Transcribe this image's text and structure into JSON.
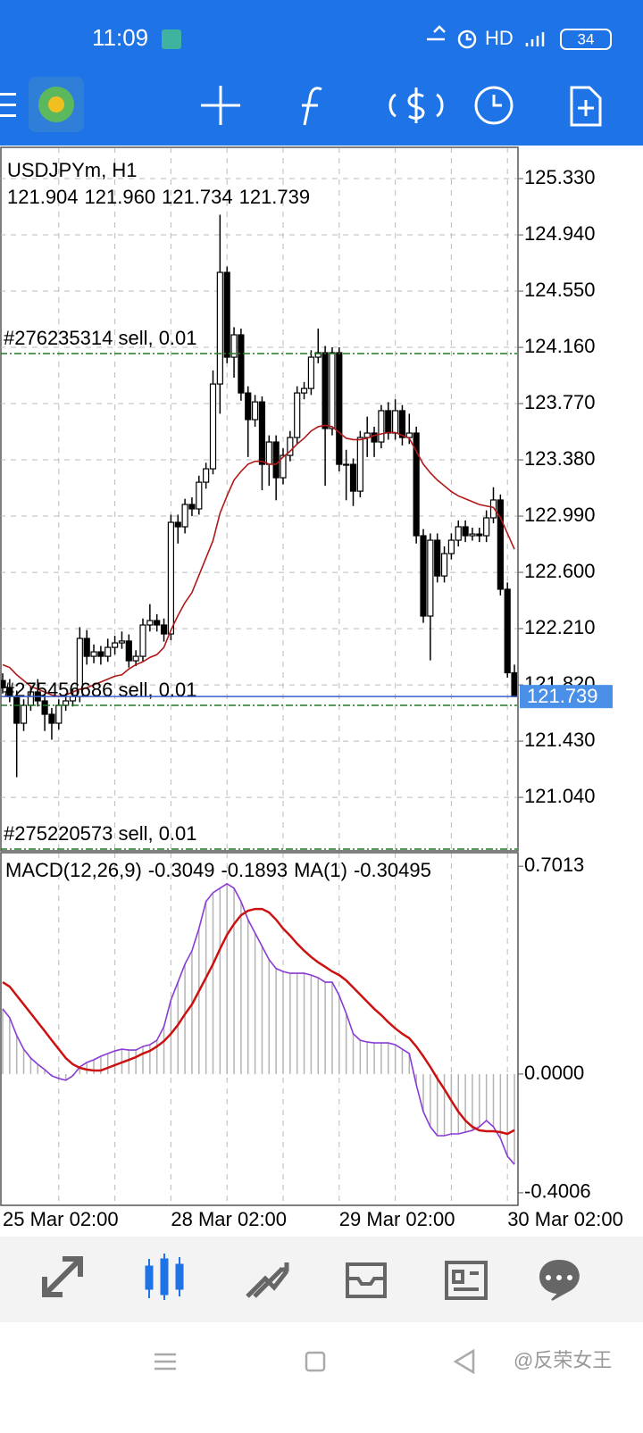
{
  "status_bar": {
    "time": "11:09",
    "network": "HD",
    "battery": "34"
  },
  "chart_data": [
    {
      "type": "candlestick",
      "title": "USDJPYm, H1",
      "quote_labels": [
        "121.904",
        "121.960",
        "121.734",
        "121.739"
      ],
      "up_color": "#ffffff",
      "down_color": "#000000",
      "categories": [
        "25 Mar 02:00",
        null,
        null,
        null,
        null,
        null,
        null,
        null,
        null,
        null,
        null,
        null,
        null,
        null,
        null,
        null,
        null,
        null,
        null,
        null,
        null,
        null,
        null,
        null,
        "28 Mar 02:00",
        null,
        null,
        null,
        null,
        null,
        null,
        null,
        null,
        null,
        null,
        null,
        null,
        null,
        null,
        null,
        null,
        null,
        null,
        null,
        null,
        null,
        null,
        null,
        "29 Mar 02:00",
        null,
        null,
        null,
        null,
        null,
        null,
        null,
        null,
        null,
        null,
        null,
        null,
        null,
        null,
        null,
        null,
        null,
        null,
        null,
        null,
        null,
        null,
        null,
        "30 Mar 02:00",
        null
      ],
      "open": [
        121.85,
        121.8,
        121.74,
        121.554,
        121.678,
        121.771,
        121.709,
        121.616,
        121.554,
        121.678,
        121.709,
        121.74,
        122.142,
        122.018,
        122.049,
        122.018,
        122.08,
        122.111,
        122.124,
        121.987,
        122.018,
        122.235,
        122.266,
        122.235,
        122.173,
        122.947,
        122.916,
        123.071,
        123.04,
        123.225,
        123.318,
        123.906,
        124.68,
        124.092,
        124.247,
        123.844,
        123.659,
        123.782,
        123.349,
        123.504,
        123.256,
        123.411,
        123.535,
        123.844,
        123.875,
        124.092,
        124.123,
        123.597,
        124.123,
        123.349,
        123.349,
        123.163,
        123.535,
        123.566,
        123.504,
        123.721,
        123.566,
        123.721,
        123.535,
        123.566,
        122.854,
        122.297,
        122.823,
        122.575,
        122.73,
        122.823,
        122.916,
        122.854,
        122.866,
        122.854,
        122.978,
        123.102,
        122.483,
        121.904
      ],
      "high": [
        121.9,
        121.86,
        121.78,
        121.72,
        121.81,
        121.86,
        121.75,
        121.66,
        121.72,
        121.76,
        121.79,
        122.22,
        122.2,
        122.1,
        122.09,
        122.14,
        122.16,
        122.19,
        122.17,
        122.06,
        122.28,
        122.38,
        122.31,
        122.28,
        123.0,
        123.0,
        123.11,
        123.12,
        123.27,
        123.36,
        124.0,
        125.08,
        124.72,
        124.3,
        124.29,
        123.89,
        123.83,
        123.82,
        123.55,
        123.55,
        123.46,
        123.58,
        123.89,
        123.92,
        124.14,
        124.29,
        124.17,
        124.16,
        124.16,
        123.45,
        123.39,
        123.58,
        123.68,
        123.61,
        123.76,
        123.78,
        123.8,
        123.76,
        123.7,
        123.61,
        122.9,
        122.87,
        122.87,
        122.78,
        122.87,
        122.96,
        122.96,
        122.91,
        122.91,
        123.03,
        123.19,
        123.14,
        122.53,
        121.96
      ],
      "low": [
        121.76,
        121.7,
        121.18,
        121.5,
        121.64,
        121.67,
        121.5,
        121.44,
        121.51,
        121.64,
        121.67,
        121.7,
        121.96,
        121.97,
        121.96,
        121.98,
        122.03,
        122.07,
        121.94,
        121.95,
        121.98,
        122.19,
        122.19,
        122.12,
        122.13,
        122.8,
        122.87,
        122.99,
        123.0,
        123.18,
        123.28,
        123.7,
        124.05,
        123.95,
        123.79,
        123.4,
        123.61,
        123.17,
        123.2,
        123.1,
        123.21,
        123.37,
        123.49,
        123.8,
        123.83,
        124.05,
        123.2,
        123.55,
        123.3,
        123.1,
        123.06,
        123.12,
        123.4,
        123.4,
        123.46,
        123.52,
        123.52,
        123.48,
        123.49,
        122.8,
        122.25,
        121.99,
        122.53,
        122.53,
        122.69,
        122.78,
        122.81,
        122.82,
        122.81,
        122.81,
        122.94,
        122.44,
        121.87,
        121.734
      ],
      "close": [
        121.8,
        121.74,
        121.554,
        121.678,
        121.771,
        121.709,
        121.616,
        121.554,
        121.678,
        121.709,
        121.74,
        122.142,
        122.018,
        122.049,
        122.018,
        122.08,
        122.111,
        122.124,
        121.987,
        122.018,
        122.235,
        122.266,
        122.235,
        122.173,
        122.947,
        122.916,
        123.071,
        123.04,
        123.225,
        123.318,
        123.906,
        124.68,
        124.092,
        124.247,
        123.844,
        123.659,
        123.782,
        123.349,
        123.504,
        123.256,
        123.411,
        123.535,
        123.844,
        123.875,
        124.092,
        124.123,
        123.597,
        124.123,
        123.349,
        123.349,
        123.163,
        123.535,
        123.566,
        123.504,
        123.721,
        123.566,
        123.721,
        123.535,
        123.566,
        122.854,
        122.297,
        122.823,
        122.575,
        122.73,
        122.823,
        122.916,
        122.854,
        122.866,
        122.854,
        122.978,
        123.102,
        122.483,
        121.904,
        121.739
      ],
      "ma": {
        "color": "#b01818",
        "values": [
          121.96,
          121.94,
          121.89,
          121.85,
          121.81,
          121.79,
          121.77,
          121.75,
          121.74,
          121.75,
          121.77,
          121.79,
          121.8,
          121.82,
          121.84,
          121.86,
          121.88,
          121.89,
          121.93,
          121.96,
          121.98,
          122.01,
          122.03,
          122.08,
          122.2,
          122.3,
          122.39,
          122.46,
          122.58,
          122.7,
          122.82,
          123.01,
          123.13,
          123.24,
          123.3,
          123.35,
          123.37,
          123.37,
          123.35,
          123.35,
          123.4,
          123.44,
          123.49,
          123.53,
          123.58,
          123.61,
          123.62,
          123.61,
          123.57,
          123.53,
          123.52,
          123.52,
          123.53,
          123.55,
          123.56,
          123.57,
          123.57,
          123.55,
          123.53,
          123.44,
          123.35,
          123.29,
          123.24,
          123.2,
          123.16,
          123.13,
          123.11,
          123.09,
          123.07,
          123.06,
          123.05,
          122.98,
          122.87,
          122.76
        ]
      },
      "orders": [
        {
          "label": "#276235314 sell, 0.01",
          "value": 124.117
        },
        {
          "label": "#275456686 sell, 0.01",
          "value": 121.678
        },
        {
          "label": "#275220573 sell, 0.01",
          "value": 120.681
        }
      ],
      "order_color": "#1f7a1f",
      "price_line_color": "#3a5fcd",
      "ylim": [
        120.669,
        125.547
      ],
      "yticks": [
        {
          "value": 125.33,
          "label": "125.330"
        },
        {
          "value": 124.94,
          "label": "124.940"
        },
        {
          "value": 124.55,
          "label": "124.550"
        },
        {
          "value": 124.16,
          "label": "124.160"
        },
        {
          "value": 123.77,
          "label": "123.770"
        },
        {
          "value": 123.38,
          "label": "123.380"
        },
        {
          "value": 122.99,
          "label": "122.990"
        },
        {
          "value": 122.6,
          "label": "122.600"
        },
        {
          "value": 122.21,
          "label": "122.210"
        },
        {
          "value": 121.82,
          "label": "121.820"
        },
        {
          "value": 121.43,
          "label": "121.430"
        },
        {
          "value": 121.04,
          "label": "121.040"
        }
      ],
      "grid": true
    },
    {
      "type": "macd",
      "title": "MACD(12,26,9)",
      "series": [
        {
          "color": "#b4b4b4",
          "values": [
            0.22,
            0.19,
            0.13,
            0.084,
            0.054,
            0.033,
            0.015,
            -0.006,
            -0.015,
            -0.021,
            -0.006,
            0.024,
            0.039,
            0.048,
            0.06,
            0.069,
            0.078,
            0.084,
            0.081,
            0.081,
            0.093,
            0.099,
            0.114,
            0.16,
            0.25,
            0.31,
            0.371,
            0.416,
            0.491,
            0.582,
            0.612,
            0.627,
            0.642,
            0.627,
            0.582,
            0.521,
            0.476,
            0.431,
            0.386,
            0.356,
            0.346,
            0.34,
            0.34,
            0.34,
            0.334,
            0.325,
            0.31,
            0.31,
            0.265,
            0.205,
            0.136,
            0.114,
            0.108,
            0.105,
            0.105,
            0.105,
            0.099,
            0.084,
            0.069,
            -0.036,
            -0.127,
            -0.178,
            -0.208,
            -0.208,
            -0.202,
            -0.202,
            -0.196,
            -0.19,
            -0.178,
            -0.157,
            -0.178,
            -0.217,
            -0.277,
            -0.3049
          ]
        },
        {
          "color": "#cc1111",
          "values": [
            0.31,
            0.295,
            0.265,
            0.235,
            0.205,
            0.175,
            0.145,
            0.114,
            0.084,
            0.054,
            0.033,
            0.021,
            0.015,
            0.012,
            0.012,
            0.021,
            0.03,
            0.039,
            0.048,
            0.057,
            0.069,
            0.078,
            0.093,
            0.111,
            0.136,
            0.166,
            0.202,
            0.235,
            0.28,
            0.325,
            0.371,
            0.422,
            0.47,
            0.506,
            0.536,
            0.551,
            0.557,
            0.557,
            0.545,
            0.521,
            0.491,
            0.467,
            0.44,
            0.416,
            0.395,
            0.377,
            0.362,
            0.346,
            0.334,
            0.316,
            0.292,
            0.268,
            0.244,
            0.22,
            0.199,
            0.175,
            0.154,
            0.136,
            0.121,
            0.093,
            0.06,
            0.024,
            -0.015,
            -0.051,
            -0.09,
            -0.127,
            -0.157,
            -0.178,
            -0.19,
            -0.193,
            -0.193,
            -0.196,
            -0.202,
            -0.1893
          ]
        },
        {
          "name": "MA(1)",
          "color": "#8a3ad6",
          "values": [
            0.22,
            0.19,
            0.13,
            0.084,
            0.054,
            0.033,
            0.015,
            -0.006,
            -0.015,
            -0.021,
            -0.006,
            0.024,
            0.039,
            0.048,
            0.06,
            0.069,
            0.078,
            0.084,
            0.081,
            0.081,
            0.093,
            0.099,
            0.114,
            0.16,
            0.25,
            0.31,
            0.371,
            0.416,
            0.491,
            0.582,
            0.612,
            0.627,
            0.642,
            0.627,
            0.582,
            0.521,
            0.476,
            0.431,
            0.386,
            0.356,
            0.346,
            0.34,
            0.34,
            0.34,
            0.334,
            0.325,
            0.31,
            0.31,
            0.265,
            0.205,
            0.136,
            0.114,
            0.108,
            0.105,
            0.105,
            0.105,
            0.099,
            0.084,
            0.069,
            -0.036,
            -0.127,
            -0.178,
            -0.208,
            -0.208,
            -0.202,
            -0.202,
            -0.196,
            -0.19,
            -0.178,
            -0.157,
            -0.178,
            -0.217,
            -0.277,
            -0.30495
          ]
        }
      ],
      "ylim": [
        -0.443,
        0.747
      ],
      "yticks": [
        0.7013,
        {
          "value": 0,
          "label": "0.0000"
        },
        -0.4006
      ],
      "grid": "x"
    }
  ],
  "watermark": "@反荣女王"
}
